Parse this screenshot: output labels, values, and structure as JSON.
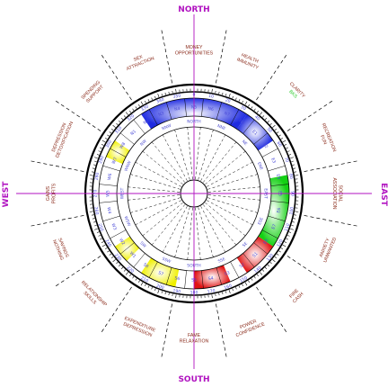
{
  "directions": {
    "north": "NORTH",
    "south": "SOUTH",
    "east": "EAST",
    "west": "WEST"
  },
  "sectors": [
    {
      "lines": [
        "MONEY",
        "OPPORTUNITIES"
      ]
    },
    {
      "lines": [
        "HEALTH",
        "IMMUNITY"
      ]
    },
    {
      "lines": [
        "CLARITY",
        "BKS"
      ],
      "green_line": 1
    },
    {
      "lines": [
        "RECREATION",
        "FUN"
      ]
    },
    {
      "lines": [
        "SOCIAL",
        "ASSOCIATION"
      ]
    },
    {
      "lines": [
        "ANXIETY",
        "UNWANTED"
      ]
    },
    {
      "lines": [
        "FIRE",
        "CASH"
      ]
    },
    {
      "lines": [
        "POWER",
        "CONFIDENCE"
      ]
    },
    {
      "lines": [
        "FAME",
        "RELAXATION"
      ]
    },
    {
      "lines": [
        "EXPENDITURE",
        "DEPRESSION"
      ]
    },
    {
      "lines": [
        "RELATIONSHIP",
        "SKILLS"
      ]
    },
    {
      "lines": [
        "SAVINGS",
        "NOTHING"
      ]
    },
    {
      "lines": [
        "GAINS",
        "PROFITS"
      ]
    },
    {
      "lines": [
        "DEPRESSION",
        "DETOXIFICATION"
      ]
    },
    {
      "lines": [
        "SPENDING",
        "SUPPORT"
      ]
    },
    {
      "lines": [
        "SEX",
        "ATTRACTION"
      ]
    }
  ],
  "band_labels": [
    "N5",
    "N6",
    "N7",
    "N8",
    "E1",
    "E2",
    "E3",
    "E4",
    "E5",
    "E6",
    "E7",
    "E8",
    "S1",
    "S2",
    "S3",
    "S4",
    "S5",
    "S6",
    "S7",
    "S8",
    "W1",
    "W2",
    "W3",
    "W4",
    "W5",
    "W6",
    "W7",
    "W8",
    "N1",
    "N2",
    "N3",
    "N4"
  ],
  "inner_labels": [
    "NORTH",
    "NNE",
    "NE",
    "ENE",
    "EAST",
    "ESE",
    "SE",
    "SSE",
    "SOUTH",
    "SSW",
    "SW",
    "WSW",
    "WEST",
    "WNW",
    "NW",
    "NNW"
  ],
  "colors": {
    "north": "#1f2be0",
    "east": "#14d014",
    "south": "#e01414",
    "west": "#f0f000",
    "axis": "#b012c0",
    "sector_text": "#8a2a1a",
    "degree_text": "#4a4ad8"
  }
}
